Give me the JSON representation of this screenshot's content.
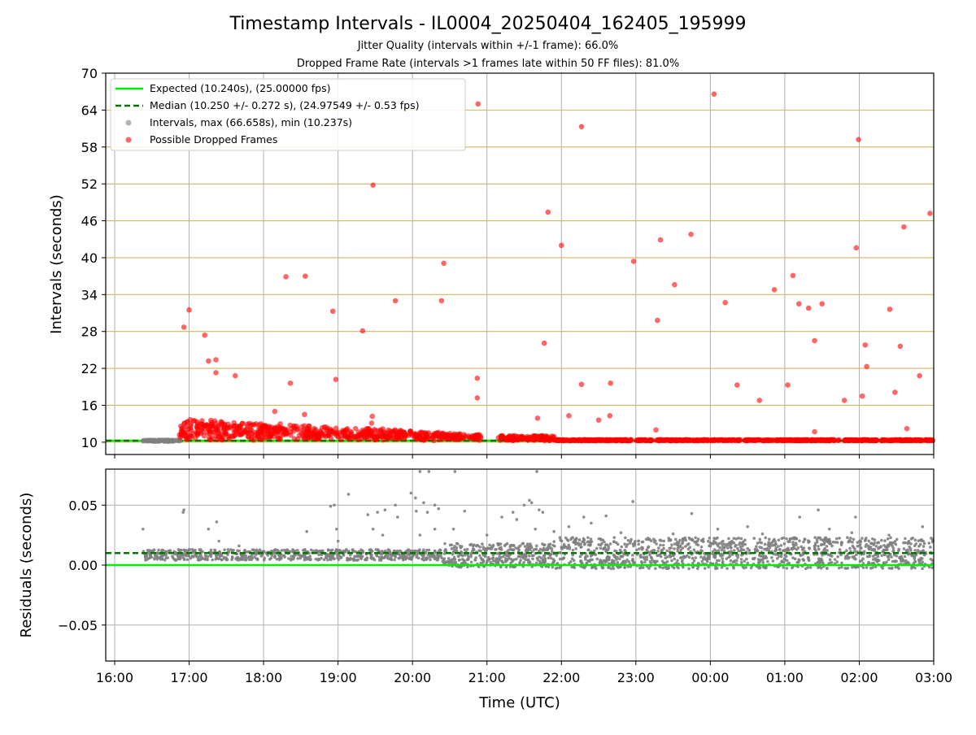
{
  "title": "Timestamp Intervals - IL0004_20250404_162405_195999",
  "subtitle_1": "Jitter Quality (intervals within +/-1 frame): 66.0%",
  "subtitle_2": "Dropped Frame Rate (intervals >1 frames late within 50 FF files): 81.0%",
  "colors": {
    "expected": "#00ee00",
    "median": "#007700",
    "dropped": "#ff0000",
    "interval": "#808080",
    "gold_grid": "#d2b464",
    "gray_grid": "#b0b0b0"
  },
  "chart_data": [
    {
      "type": "scatter",
      "name": "intervals",
      "xlabel": "",
      "ylabel": "Intervals (seconds)",
      "xlim": [
        -0.12,
        11.0
      ],
      "ylim": [
        8,
        70
      ],
      "x_tick_hours_offset_from_16": [
        0,
        1,
        2,
        3,
        4,
        5,
        6,
        7,
        8,
        9,
        10,
        11
      ],
      "y_ticks": [
        10,
        16,
        22,
        28,
        34,
        40,
        46,
        52,
        58,
        64,
        70
      ],
      "grid": "gold horizontal, gray vertical",
      "legend_position": "top-left",
      "legend": [
        {
          "key": "expected",
          "label": "Expected (10.240s), (25.00000 fps)"
        },
        {
          "key": "median",
          "label": "Median (10.250 +/- 0.272 s), (24.97549 +/- 0.53 fps)"
        },
        {
          "key": "interval",
          "label": "Intervals, max (66.658s), min (10.237s)"
        },
        {
          "key": "dropped",
          "label": "Possible Dropped Frames"
        }
      ],
      "expected_value": 10.24,
      "median_value": 10.25,
      "dropped_points": [
        [
          0.93,
          28.7
        ],
        [
          1.0,
          31.5
        ],
        [
          1.21,
          27.4
        ],
        [
          1.26,
          23.2
        ],
        [
          1.36,
          23.4
        ],
        [
          1.36,
          21.3
        ],
        [
          1.62,
          20.8
        ],
        [
          2.15,
          15.0
        ],
        [
          2.3,
          36.9
        ],
        [
          2.36,
          19.6
        ],
        [
          2.56,
          37.0
        ],
        [
          2.55,
          14.5
        ],
        [
          2.93,
          31.3
        ],
        [
          2.97,
          20.2
        ],
        [
          3.33,
          28.1
        ],
        [
          3.46,
          14.2
        ],
        [
          3.45,
          13.1
        ],
        [
          3.47,
          51.8
        ],
        [
          3.77,
          33.0
        ],
        [
          4.39,
          33.0
        ],
        [
          4.42,
          39.1
        ],
        [
          4.87,
          20.4
        ],
        [
          4.87,
          17.2
        ],
        [
          4.88,
          65.0
        ],
        [
          5.68,
          13.9
        ],
        [
          5.77,
          26.1
        ],
        [
          5.82,
          47.4
        ],
        [
          6.0,
          42.0
        ],
        [
          6.1,
          14.3
        ],
        [
          6.27,
          19.4
        ],
        [
          6.27,
          61.3
        ],
        [
          6.5,
          13.6
        ],
        [
          6.65,
          14.3
        ],
        [
          6.66,
          19.6
        ],
        [
          6.97,
          39.4
        ],
        [
          7.27,
          12.0
        ],
        [
          7.29,
          29.8
        ],
        [
          7.33,
          42.9
        ],
        [
          7.52,
          35.6
        ],
        [
          7.74,
          43.8
        ],
        [
          8.05,
          66.6
        ],
        [
          8.2,
          32.7
        ],
        [
          8.36,
          19.3
        ],
        [
          8.66,
          16.8
        ],
        [
          8.86,
          34.8
        ],
        [
          9.04,
          19.3
        ],
        [
          9.11,
          37.1
        ],
        [
          9.19,
          32.5
        ],
        [
          9.32,
          31.8
        ],
        [
          9.4,
          26.5
        ],
        [
          9.5,
          32.5
        ],
        [
          9.4,
          11.7
        ],
        [
          9.8,
          16.8
        ],
        [
          9.96,
          41.6
        ],
        [
          9.99,
          59.2
        ],
        [
          10.04,
          17.5
        ],
        [
          10.08,
          25.8
        ],
        [
          10.1,
          22.3
        ],
        [
          10.41,
          31.6
        ],
        [
          10.48,
          18.1
        ],
        [
          10.55,
          25.6
        ],
        [
          10.6,
          45.0
        ],
        [
          10.64,
          12.2
        ],
        [
          10.81,
          20.8
        ],
        [
          10.95,
          47.2
        ]
      ]
    },
    {
      "type": "scatter",
      "name": "residuals",
      "xlabel": "Time (UTC)",
      "ylabel": "Residuals (seconds)",
      "xlim": [
        -0.12,
        11.0
      ],
      "ylim": [
        -0.08,
        0.08
      ],
      "y_ticks": [
        -0.05,
        0.0,
        0.05
      ],
      "y_tick_labels": [
        "−0.05",
        "0.00",
        "0.05"
      ],
      "x_tick_labels": [
        "16:00",
        "17:00",
        "18:00",
        "19:00",
        "20:00",
        "21:00",
        "22:00",
        "23:00",
        "00:00",
        "01:00",
        "02:00",
        "03:00"
      ],
      "expected_value": 0.0,
      "median_value": 0.01,
      "outlier_points": [
        [
          0.38,
          0.03
        ],
        [
          0.92,
          0.044
        ],
        [
          0.93,
          0.046
        ],
        [
          1.26,
          0.03
        ],
        [
          1.37,
          0.036
        ],
        [
          1.4,
          0.02
        ],
        [
          1.65,
          0.012
        ],
        [
          1.67,
          0.016
        ],
        [
          2.58,
          0.028
        ],
        [
          2.9,
          0.049
        ],
        [
          2.95,
          0.05
        ],
        [
          2.98,
          0.03
        ],
        [
          3.0,
          0.02
        ],
        [
          3.14,
          0.059
        ],
        [
          3.4,
          0.042
        ],
        [
          3.53,
          0.044
        ],
        [
          3.63,
          0.046
        ],
        [
          3.47,
          0.03
        ],
        [
          3.77,
          0.05
        ],
        [
          3.8,
          0.04
        ],
        [
          3.98,
          0.06
        ],
        [
          4.04,
          0.056
        ],
        [
          4.05,
          0.045
        ],
        [
          4.2,
          0.044
        ],
        [
          4.15,
          0.052
        ],
        [
          4.3,
          0.05
        ],
        [
          4.1,
          0.078
        ],
        [
          4.22,
          0.078
        ],
        [
          4.57,
          0.078
        ],
        [
          4.35,
          0.047
        ],
        [
          4.7,
          0.045
        ],
        [
          4.55,
          0.03
        ],
        [
          5.2,
          0.04
        ],
        [
          5.35,
          0.044
        ],
        [
          5.4,
          0.038
        ],
        [
          5.5,
          0.05
        ],
        [
          5.57,
          0.054
        ],
        [
          5.6,
          0.052
        ],
        [
          5.65,
          0.03
        ],
        [
          5.7,
          0.046
        ],
        [
          5.75,
          0.044
        ],
        [
          5.67,
          0.078
        ],
        [
          6.1,
          0.032
        ],
        [
          6.3,
          0.04
        ],
        [
          6.4,
          0.035
        ],
        [
          6.6,
          0.041
        ],
        [
          6.96,
          0.053
        ],
        [
          7.75,
          0.043
        ],
        [
          8.1,
          0.03
        ],
        [
          8.5,
          0.032
        ],
        [
          9.2,
          0.04
        ],
        [
          9.45,
          0.046
        ],
        [
          9.6,
          0.03
        ],
        [
          9.95,
          0.04
        ],
        [
          10.85,
          0.032
        ],
        [
          4.1,
          0.025
        ],
        [
          4.3,
          0.03
        ],
        [
          3.6,
          0.025
        ],
        [
          5.0,
          0.025
        ],
        [
          5.9,
          0.028
        ],
        [
          6.8,
          0.027
        ],
        [
          7.5,
          0.026
        ],
        [
          8.7,
          0.026
        ],
        [
          9.9,
          0.027
        ],
        [
          10.4,
          0.025
        ]
      ]
    }
  ]
}
